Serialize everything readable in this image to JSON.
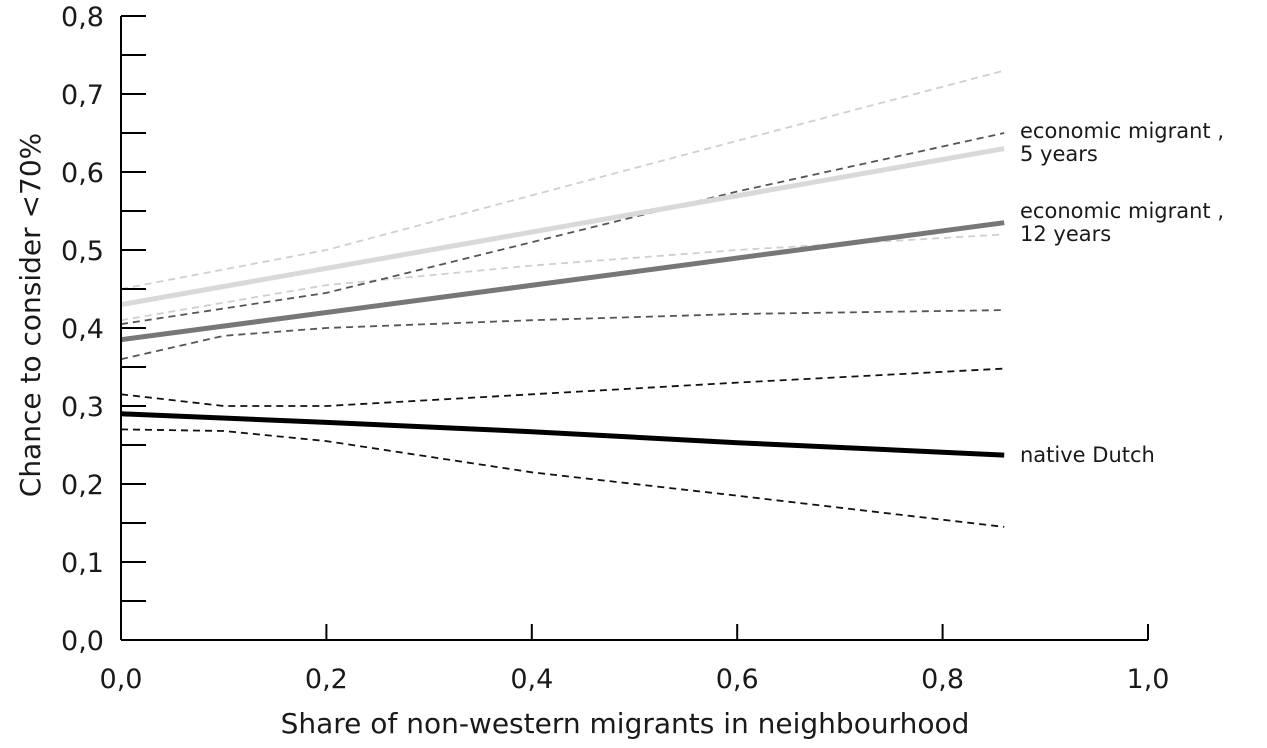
{
  "chart_data": {
    "type": "line",
    "title": "",
    "xlabel": "Share of non-western migrants in neighbourhood",
    "ylabel": "Chance to consider <70%",
    "xlim": [
      0.0,
      1.0
    ],
    "ylim": [
      0.0,
      0.8
    ],
    "x_ticks": [
      "0,0",
      "0,2",
      "0,4",
      "0,6",
      "0,8",
      "1,0"
    ],
    "x_tick_values": [
      0.0,
      0.2,
      0.4,
      0.6,
      0.8,
      1.0
    ],
    "y_ticks": [
      "0,0",
      "0,1",
      "0,2",
      "0,3",
      "0,4",
      "0,5",
      "0,6",
      "0,7",
      "0,8"
    ],
    "y_tick_values": [
      0.0,
      0.1,
      0.2,
      0.3,
      0.4,
      0.5,
      0.6,
      0.7,
      0.8
    ],
    "y_minor_step": 0.05,
    "grid": false,
    "legend": "inline labels at right end of lines",
    "series": [
      {
        "name": "economic migrant , 5 years",
        "label_lines": [
          "economic migrant ,",
          "5 years"
        ],
        "color": "#d9d9d9",
        "label_y": 0.64,
        "x": [
          0.0,
          0.86
        ],
        "values": [
          0.43,
          0.63
        ],
        "ci_color": "#cfcfcf",
        "ci_upper": {
          "x": [
            0.0,
            0.2,
            0.4,
            0.6,
            0.86
          ],
          "values": [
            0.45,
            0.5,
            0.57,
            0.64,
            0.73
          ]
        },
        "ci_lower": {
          "x": [
            0.0,
            0.2,
            0.4,
            0.6,
            0.86
          ],
          "values": [
            0.41,
            0.455,
            0.48,
            0.5,
            0.52
          ]
        }
      },
      {
        "name": "economic migrant , 12 years",
        "label_lines": [
          "economic migrant ,",
          "12 years"
        ],
        "color": "#777777",
        "label_y": 0.537,
        "x": [
          0.0,
          0.86
        ],
        "values": [
          0.385,
          0.535
        ],
        "ci_color": "#555555",
        "ci_upper": {
          "x": [
            0.0,
            0.2,
            0.4,
            0.6,
            0.86
          ],
          "values": [
            0.405,
            0.445,
            0.51,
            0.575,
            0.65
          ]
        },
        "ci_lower": {
          "x": [
            0.0,
            0.1,
            0.2,
            0.4,
            0.6,
            0.86
          ],
          "values": [
            0.36,
            0.39,
            0.4,
            0.41,
            0.418,
            0.423
          ]
        }
      },
      {
        "name": "native Dutch",
        "label_lines": [
          "native Dutch"
        ],
        "color": "#000000",
        "label_y": 0.237,
        "x": [
          0.0,
          0.2,
          0.4,
          0.6,
          0.86
        ],
        "values": [
          0.29,
          0.279,
          0.267,
          0.253,
          0.237
        ],
        "ci_color": "#111111",
        "ci_upper": {
          "x": [
            0.0,
            0.1,
            0.2,
            0.4,
            0.6,
            0.86
          ],
          "values": [
            0.315,
            0.3,
            0.3,
            0.315,
            0.33,
            0.348
          ]
        },
        "ci_lower": {
          "x": [
            0.0,
            0.1,
            0.2,
            0.4,
            0.6,
            0.86
          ],
          "values": [
            0.27,
            0.268,
            0.255,
            0.215,
            0.185,
            0.145
          ]
        }
      }
    ]
  }
}
